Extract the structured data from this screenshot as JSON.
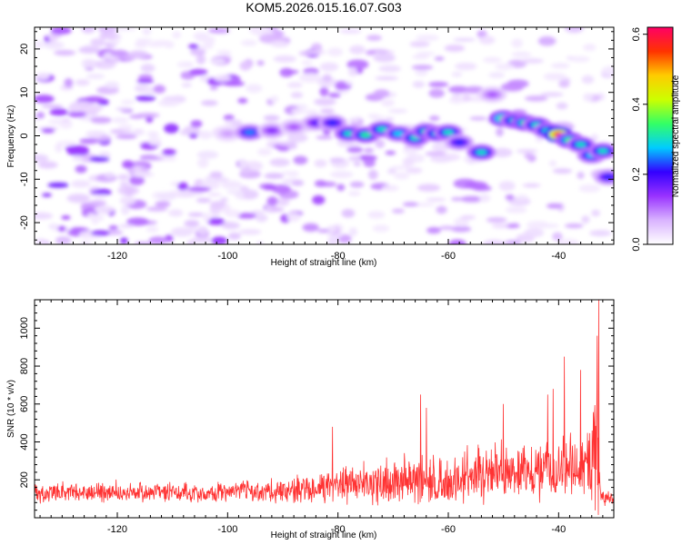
{
  "title": "KOM5.2026.015.16.07.G03",
  "chart_data": [
    {
      "type": "heatmap",
      "title": "KOM5.2026.015.16.07.G03",
      "xlabel": "Height of straight line (km)",
      "ylabel": "Frequency (Hz)",
      "xlim": [
        -135,
        -30
      ],
      "ylim": [
        -25,
        25
      ],
      "xticks": [
        -120,
        -100,
        -80,
        -60,
        -40
      ],
      "yticks": [
        -20,
        -10,
        0,
        10,
        20
      ],
      "colorbar": {
        "label": "Normalized spectral amplitude",
        "range": [
          0,
          0.62
        ],
        "ticks": [
          0.0,
          0.2,
          0.4,
          0.6
        ],
        "stops": [
          "#ffffff",
          "#d9b3ff",
          "#9933ff",
          "#3300ff",
          "#00ccff",
          "#33ff66",
          "#ccff00",
          "#ffcc00",
          "#ff3300",
          "#ff0066"
        ]
      },
      "ridges": [
        {
          "x": -100,
          "y": 0.5,
          "v": 0.08
        },
        {
          "x": -96,
          "y": 0.8,
          "v": 0.25
        },
        {
          "x": -92,
          "y": 1.2,
          "v": 0.15
        },
        {
          "x": -88,
          "y": 2.0,
          "v": 0.12
        },
        {
          "x": -84,
          "y": 3.0,
          "v": 0.18
        },
        {
          "x": -81,
          "y": 3.0,
          "v": 0.22
        },
        {
          "x": -78,
          "y": 0.5,
          "v": 0.3
        },
        {
          "x": -75,
          "y": 0.2,
          "v": 0.32
        },
        {
          "x": -72,
          "y": 1.5,
          "v": 0.3
        },
        {
          "x": -69,
          "y": 0.5,
          "v": 0.28
        },
        {
          "x": -66,
          "y": -0.5,
          "v": 0.3
        },
        {
          "x": -64,
          "y": 1.0,
          "v": 0.32
        },
        {
          "x": -62,
          "y": 0.5,
          "v": 0.3
        },
        {
          "x": -60,
          "y": 0.8,
          "v": 0.3
        },
        {
          "x": -58,
          "y": -1.5,
          "v": 0.22
        },
        {
          "x": -54,
          "y": -3.8,
          "v": 0.3
        },
        {
          "x": -52,
          "y": 9.5,
          "v": 0.12
        },
        {
          "x": -50,
          "y": 4.0,
          "v": 0.38
        },
        {
          "x": -48,
          "y": 3.5,
          "v": 0.3
        },
        {
          "x": -46,
          "y": 3.0,
          "v": 0.35
        },
        {
          "x": -44,
          "y": 2.5,
          "v": 0.3
        },
        {
          "x": -42,
          "y": 1.2,
          "v": 0.3
        },
        {
          "x": -40,
          "y": 0.3,
          "v": 0.6
        },
        {
          "x": -38,
          "y": -1.0,
          "v": 0.35
        },
        {
          "x": -36,
          "y": -2.0,
          "v": 0.3
        },
        {
          "x": -34,
          "y": -4.5,
          "v": 0.28
        },
        {
          "x": -32,
          "y": -3.5,
          "v": 0.3
        },
        {
          "x": -31,
          "y": -9.5,
          "v": 0.22
        }
      ]
    },
    {
      "type": "line",
      "xlabel": "Height of straight line (km)",
      "ylabel": "SNR (10 * v/v)",
      "xlim": [
        -135,
        -30
      ],
      "ylim": [
        0,
        1150
      ],
      "xticks": [
        -120,
        -100,
        -80,
        -60,
        -40
      ],
      "yticks": [
        200,
        400,
        600,
        800,
        1000
      ],
      "series": [
        {
          "name": "SNR",
          "color": "#ff3333",
          "envelope_x": [
            -135,
            -120,
            -100,
            -90,
            -80,
            -70,
            -60,
            -50,
            -45,
            -40,
            -35,
            -33,
            -32,
            -30
          ],
          "envelope_base": [
            130,
            130,
            130,
            140,
            160,
            170,
            180,
            230,
            230,
            250,
            250,
            260,
            100,
            100
          ],
          "envelope_amp": [
            100,
            100,
            110,
            130,
            200,
            250,
            280,
            280,
            300,
            330,
            320,
            800,
            80,
            80
          ],
          "peaks": [
            {
              "x": -81,
              "y": 480
            },
            {
              "x": -65,
              "y": 650
            },
            {
              "x": -64,
              "y": 580
            },
            {
              "x": -50,
              "y": 600
            },
            {
              "x": -42,
              "y": 650
            },
            {
              "x": -41,
              "y": 680
            },
            {
              "x": -39,
              "y": 850
            },
            {
              "x": -36,
              "y": 780
            },
            {
              "x": -33,
              "y": 960
            },
            {
              "x": -32.7,
              "y": 1150
            }
          ]
        }
      ]
    }
  ]
}
